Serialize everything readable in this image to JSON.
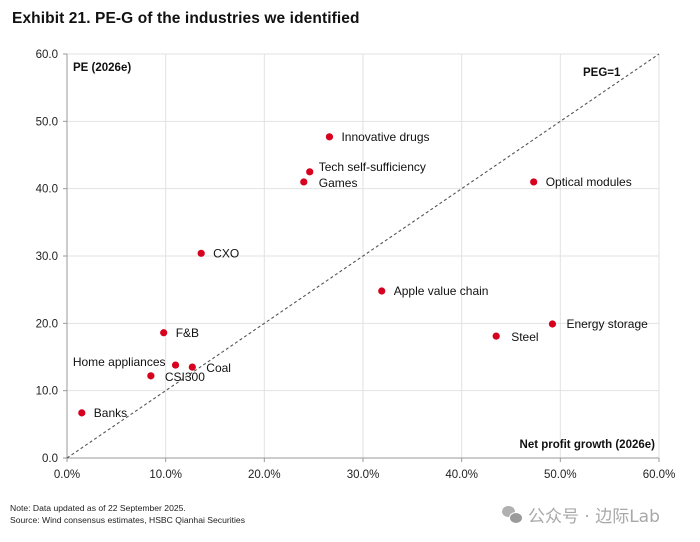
{
  "title": "Exhibit 21. PE-G of the industries we identified",
  "chart_data": {
    "type": "scatter",
    "title": "Exhibit 21. PE-G of the industries we identified",
    "xlabel": "Net profit growth (2026e)",
    "ylabel": "PE (2026e)",
    "xlim": [
      0,
      60
    ],
    "ylim": [
      0,
      60
    ],
    "x_ticks": [
      "0.0%",
      "10.0%",
      "20.0%",
      "30.0%",
      "40.0%",
      "50.0%",
      "60.0%"
    ],
    "x_tick_values": [
      0,
      10,
      20,
      30,
      40,
      50,
      60
    ],
    "y_ticks": [
      "0.0",
      "10.0",
      "20.0",
      "30.0",
      "40.0",
      "50.0",
      "60.0"
    ],
    "y_tick_values": [
      0,
      10,
      20,
      30,
      40,
      50,
      60
    ],
    "grid": true,
    "point_color": "#d7001e",
    "reference_line": {
      "label": "PEG=1",
      "from": [
        0,
        0
      ],
      "to": [
        60,
        60
      ],
      "style": "dashed"
    },
    "points": [
      {
        "label": "Innovative drugs",
        "x": 26.6,
        "y": 47.7,
        "label_side": "right"
      },
      {
        "label": "Tech self-sufficiency",
        "x": 24.6,
        "y": 42.5,
        "label_side": "right"
      },
      {
        "label": "Games",
        "x": 24.0,
        "y": 41.0,
        "label_side": "right"
      },
      {
        "label": "Optical modules",
        "x": 47.3,
        "y": 41.0,
        "label_side": "right"
      },
      {
        "label": "CXO",
        "x": 13.6,
        "y": 30.4,
        "label_side": "right"
      },
      {
        "label": "Apple value chain",
        "x": 31.9,
        "y": 24.8,
        "label_side": "right"
      },
      {
        "label": "Energy storage",
        "x": 49.2,
        "y": 19.9,
        "label_side": "right"
      },
      {
        "label": "F&B",
        "x": 9.8,
        "y": 18.6,
        "label_side": "right"
      },
      {
        "label": "Steel",
        "x": 43.5,
        "y": 18.1,
        "label_side": "right"
      },
      {
        "label": "Home appliances",
        "x": 11.0,
        "y": 13.8,
        "label_side": "left"
      },
      {
        "label": "Coal",
        "x": 12.7,
        "y": 13.5,
        "label_side": "right"
      },
      {
        "label": "CSI300",
        "x": 8.5,
        "y": 12.2,
        "label_side": "right"
      },
      {
        "label": "Banks",
        "x": 1.5,
        "y": 6.7,
        "label_side": "right"
      }
    ]
  },
  "footer": {
    "note": "Note: Data updated as of 22 September 2025.",
    "source": "Source: Wind consensus estimates, HSBC Qianhai Securities"
  },
  "watermark": {
    "icon": "wechat-icon",
    "text": "公众号 · 边际Lab"
  }
}
